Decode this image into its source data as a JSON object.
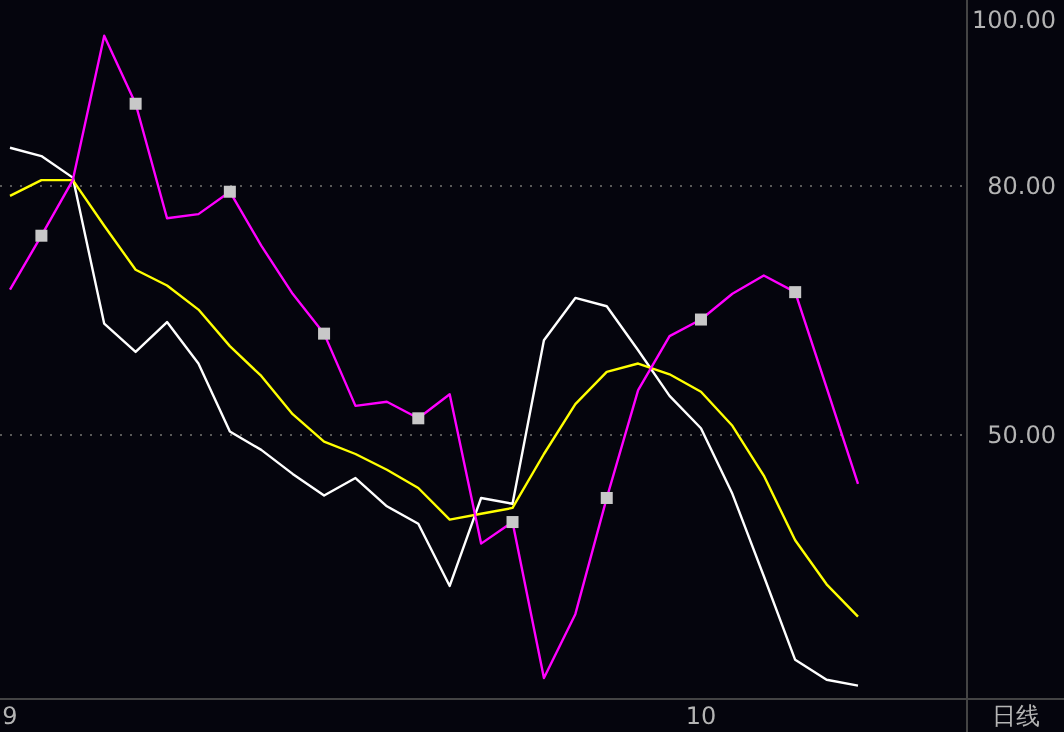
{
  "chart_data": {
    "type": "line",
    "categories": [
      "9",
      null,
      null,
      null,
      null,
      null,
      null,
      null,
      null,
      null,
      null,
      null,
      null,
      null,
      null,
      null,
      null,
      null,
      null,
      null,
      null,
      null,
      "10",
      null,
      null,
      null,
      null,
      null
    ],
    "series": [
      {
        "color": "#ffffff",
        "values": [
          84.6,
          83.6,
          81.0,
          63.4,
          60.0,
          63.6,
          58.6,
          50.4,
          48.2,
          45.3,
          42.7,
          44.8,
          41.4,
          39.3,
          31.8,
          42.4,
          41.7,
          61.4,
          66.5,
          65.5,
          60.2,
          54.7,
          50.8,
          42.9,
          33.0,
          22.9,
          20.5,
          19.8
        ]
      },
      {
        "color": "#ffff00",
        "values": [
          78.8,
          80.7,
          80.7,
          75.2,
          69.9,
          68.0,
          65.1,
          60.7,
          57.1,
          52.5,
          49.2,
          47.7,
          45.8,
          43.6,
          39.8,
          40.5,
          41.2,
          47.7,
          53.7,
          57.6,
          58.6,
          57.3,
          55.2,
          51.1,
          45.1,
          37.3,
          32.0,
          28.1
        ]
      },
      {
        "color": "#ff00ff",
        "values": [
          67.5,
          74.0,
          80.7,
          98.1,
          89.9,
          76.1,
          76.6,
          79.3,
          72.8,
          67.0,
          62.2,
          53.5,
          54.0,
          52.0,
          54.9,
          36.9,
          39.5,
          20.7,
          28.4,
          42.4,
          55.4,
          61.9,
          63.9,
          67.0,
          69.2,
          67.2,
          55.7,
          44.1
        ]
      },
      {
        "type": "scatter",
        "marker": "square",
        "color": "#c8c8c8",
        "values": [
          null,
          74.0,
          null,
          null,
          89.9,
          null,
          null,
          79.3,
          null,
          null,
          62.2,
          null,
          null,
          52.0,
          null,
          null,
          39.5,
          null,
          null,
          42.4,
          null,
          null,
          63.9,
          null,
          null,
          67.2,
          null,
          null
        ]
      }
    ],
    "ylim": [
      18.3,
      102.4
    ],
    "yticks": [
      {
        "value": 100,
        "label": "100.00"
      },
      {
        "value": 80,
        "label": "80.00"
      },
      {
        "value": 50,
        "label": "50.00"
      }
    ],
    "grid": "y",
    "annotations": [
      "日线"
    ]
  }
}
